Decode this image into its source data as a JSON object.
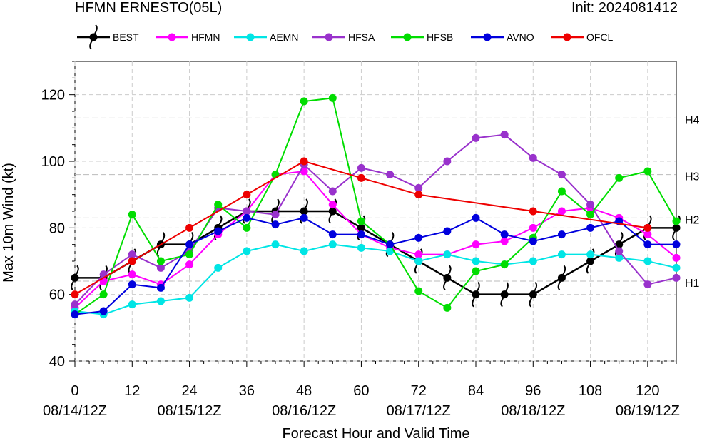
{
  "header": {
    "title": "HFMN ERNESTO(05L)",
    "init": "Init: 2024081412"
  },
  "chart_data": {
    "type": "line",
    "title": "HFMN ERNESTO(05L)",
    "xlabel": "Forecast Hour and Valid Time",
    "ylabel": "Max 10m Wind (kt)",
    "xlim": [
      0,
      126
    ],
    "ylim": [
      40,
      130
    ],
    "xticks": [
      0,
      12,
      24,
      36,
      48,
      60,
      72,
      84,
      96,
      108,
      120
    ],
    "xtick_dates": [
      {
        "hour": 0,
        "label": "08/14/12Z"
      },
      {
        "hour": 24,
        "label": "08/15/12Z"
      },
      {
        "hour": 48,
        "label": "08/16/12Z"
      },
      {
        "hour": 72,
        "label": "08/17/12Z"
      },
      {
        "hour": 96,
        "label": "08/18/12Z"
      },
      {
        "hour": 120,
        "label": "08/19/12Z"
      }
    ],
    "yticks": [
      40,
      60,
      80,
      100,
      120
    ],
    "categories_lines": [
      {
        "value": 64,
        "label": "H1"
      },
      {
        "value": 83,
        "label": "H2"
      },
      {
        "value": 96,
        "label": "H3"
      },
      {
        "value": 113,
        "label": "H4"
      }
    ],
    "legend_position": "top",
    "series": [
      {
        "name": "BEST",
        "color": "#000000",
        "marker": "hurricane",
        "x": [
          0,
          6,
          12,
          18,
          24,
          30,
          36,
          42,
          48,
          54,
          60,
          66,
          72,
          78,
          84,
          90,
          96,
          102,
          108,
          114,
          120,
          126
        ],
        "y": [
          65,
          65,
          70,
          75,
          75,
          80,
          85,
          85,
          85,
          85,
          80,
          75,
          70,
          65,
          60,
          60,
          60,
          65,
          70,
          75,
          80,
          80
        ]
      },
      {
        "name": "HFMN",
        "color": "#ff00ff",
        "marker": "dot",
        "x": [
          0,
          6,
          12,
          18,
          24,
          30,
          36,
          42,
          48,
          54,
          60,
          66,
          72,
          78,
          84,
          90,
          96,
          102,
          108,
          114,
          120,
          126
        ],
        "y": [
          56,
          64,
          66,
          63,
          69,
          78,
          85,
          96,
          97,
          87,
          78,
          74,
          72,
          72,
          75,
          76,
          80,
          85,
          86,
          83,
          78,
          71
        ]
      },
      {
        "name": "AEMN",
        "color": "#00e5e5",
        "marker": "dot",
        "x": [
          0,
          6,
          12,
          18,
          24,
          30,
          36,
          42,
          48,
          54,
          60,
          66,
          72,
          78,
          84,
          90,
          96,
          102,
          108,
          114,
          120,
          126
        ],
        "y": [
          55,
          54,
          57,
          58,
          59,
          68,
          73,
          75,
          73,
          75,
          74,
          73,
          70,
          72,
          70,
          69,
          70,
          72,
          72,
          71,
          70,
          68
        ]
      },
      {
        "name": "HFSA",
        "color": "#9932cc",
        "marker": "dot",
        "x": [
          0,
          6,
          12,
          18,
          24,
          30,
          36,
          42,
          48,
          54,
          60,
          66,
          72,
          78,
          84,
          90,
          96,
          102,
          108,
          114,
          120,
          126
        ],
        "y": [
          57,
          66,
          72,
          68,
          73,
          86,
          85,
          84,
          99,
          91,
          98,
          96,
          92,
          100,
          107,
          108,
          101,
          96,
          87,
          73,
          63,
          65
        ]
      },
      {
        "name": "HFSB",
        "color": "#00dd00",
        "marker": "dot",
        "x": [
          0,
          6,
          12,
          18,
          24,
          30,
          36,
          42,
          48,
          54,
          60,
          66,
          72,
          78,
          84,
          90,
          96,
          102,
          108,
          114,
          120,
          126
        ],
        "y": [
          54,
          60,
          84,
          70,
          72,
          87,
          80,
          96,
          118,
          119,
          82,
          75,
          61,
          56,
          67,
          69,
          77,
          91,
          84,
          95,
          97,
          82
        ]
      },
      {
        "name": "AVNO",
        "color": "#0000dd",
        "marker": "dot",
        "x": [
          0,
          6,
          12,
          18,
          24,
          30,
          36,
          42,
          48,
          54,
          60,
          66,
          72,
          78,
          84,
          90,
          96,
          102,
          108,
          114,
          120,
          126
        ],
        "y": [
          54,
          55,
          63,
          62,
          75,
          79,
          83,
          81,
          83,
          78,
          78,
          75,
          77,
          79,
          83,
          78,
          76,
          78,
          80,
          82,
          75,
          75
        ]
      },
      {
        "name": "OFCL",
        "color": "#ee0000",
        "marker": "dot",
        "x": [
          0,
          12,
          24,
          36,
          48,
          60,
          72,
          96,
          120
        ],
        "y": [
          60,
          70,
          80,
          90,
          100,
          95,
          90,
          85,
          80
        ]
      }
    ]
  }
}
